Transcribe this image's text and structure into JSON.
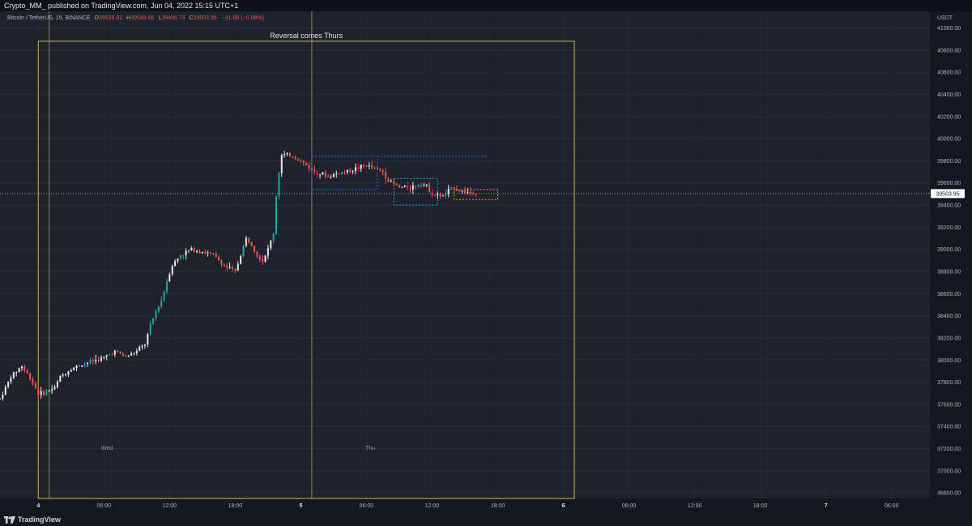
{
  "header": {
    "published": "Crypto_MM_ published on TradingView.com, Jun 04, 2022 15:15 UTC+1"
  },
  "legend": {
    "symbol": "Bitcoin / TetherUS, 15, BINANCE",
    "o_label": "O",
    "o_value": "39535.02",
    "h_label": "H",
    "h_value": "39545.66",
    "l_label": "L",
    "l_value": "39486.73",
    "c_label": "C",
    "c_value": "39503.95",
    "change": "−31.06 (−0.08%)"
  },
  "price_axis": {
    "currency": "USDT",
    "last_price": "39503.95",
    "ticks": [
      "41000.00",
      "40800.00",
      "40600.00",
      "40400.00",
      "40200.00",
      "40000.00",
      "39800.00",
      "39600.00",
      "39400.00",
      "39200.00",
      "39000.00",
      "38800.00",
      "38600.00",
      "38400.00",
      "38200.00",
      "38000.00",
      "37800.00",
      "37600.00",
      "37400.00",
      "37200.00",
      "37000.00",
      "36800.00"
    ]
  },
  "time_axis": {
    "ticks": [
      "4",
      "06:00",
      "12:00",
      "18:00",
      "5",
      "06:00",
      "12:00",
      "18:00",
      "6",
      "06:00",
      "12:00",
      "18:00",
      "7",
      "06:00"
    ],
    "bold": [
      "4",
      "5",
      "6",
      "7"
    ]
  },
  "annotations": {
    "box_title": "Reversal comes Thurs",
    "day_labels": [
      "Wed",
      "Thu"
    ]
  },
  "footer": {
    "brand": "TradingView"
  },
  "colors": {
    "up": "#26a69a",
    "down": "#ef5350",
    "body_white": "#e8e8e8",
    "pink": "#e91e63",
    "blue": "#2196f3",
    "annotation": "#c9b458",
    "box_blue": "#2962ff",
    "box_teal": "#00bcd4",
    "box_orange": "#ff9800"
  },
  "chart_data": {
    "type": "candlestick",
    "symbol": "BTCUSDT",
    "interval_minutes": 15,
    "ylim": [
      36750,
      41150
    ],
    "y_ticks": [
      41000,
      40800,
      40600,
      40400,
      40200,
      40000,
      39800,
      39600,
      39400,
      39200,
      39000,
      38800,
      38600,
      38400,
      38200,
      38000,
      37800,
      37600,
      37400,
      37200,
      37000,
      36800
    ],
    "last_close": 39503.95,
    "x_range_hours": [
      -3.5,
      81.5
    ],
    "x_time_ticks_hours_from_jun4_0000": [
      0,
      6,
      12,
      18,
      24,
      30,
      36,
      42,
      48,
      54,
      60,
      66,
      72,
      78
    ],
    "close_series_points": [
      [
        -3.5,
        37650
      ],
      [
        -2.5,
        37850
      ],
      [
        -1.5,
        37950
      ],
      [
        -0.5,
        37800
      ],
      [
        0,
        37700
      ],
      [
        0.5,
        37700
      ],
      [
        1.5,
        37750
      ],
      [
        2,
        37850
      ],
      [
        3,
        37920
      ],
      [
        4.5,
        37980
      ],
      [
        6,
        38020
      ],
      [
        7,
        38080
      ],
      [
        8,
        38030
      ],
      [
        9,
        38080
      ],
      [
        9.8,
        38150
      ],
      [
        10.2,
        38300
      ],
      [
        10.8,
        38450
      ],
      [
        11.3,
        38550
      ],
      [
        11.7,
        38700
      ],
      [
        12.2,
        38850
      ],
      [
        13,
        38950
      ],
      [
        14,
        39000
      ],
      [
        15,
        38980
      ],
      [
        16,
        38950
      ],
      [
        16.5,
        38900
      ],
      [
        17,
        38850
      ],
      [
        18,
        38800
      ],
      [
        18.5,
        38950
      ],
      [
        19,
        39100
      ],
      [
        19.5,
        39050
      ],
      [
        20,
        38950
      ],
      [
        20.5,
        38900
      ],
      [
        21,
        39000
      ],
      [
        21.5,
        39150
      ],
      [
        21.8,
        39550
      ],
      [
        22.2,
        39850
      ],
      [
        23,
        39850
      ],
      [
        24,
        39800
      ],
      [
        25,
        39720
      ],
      [
        26,
        39680
      ],
      [
        26.5,
        39650
      ],
      [
        27,
        39680
      ],
      [
        28,
        39700
      ],
      [
        29,
        39730
      ],
      [
        30,
        39760
      ],
      [
        31,
        39720
      ],
      [
        31.5,
        39700
      ],
      [
        32,
        39620
      ],
      [
        33,
        39560
      ],
      [
        34,
        39560
      ],
      [
        35,
        39600
      ],
      [
        35.5,
        39570
      ],
      [
        36,
        39500
      ],
      [
        37,
        39480
      ],
      [
        37.5,
        39530
      ],
      [
        38,
        39560
      ],
      [
        38.5,
        39530
      ],
      [
        39,
        39520
      ],
      [
        39.5,
        39510
      ],
      [
        40,
        39504
      ]
    ],
    "annotations": [
      {
        "type": "vertical_line",
        "x_hours": 1.0
      },
      {
        "type": "vertical_line",
        "x_hours": 25.0
      },
      {
        "type": "rectangle",
        "label": "Reversal comes Thurs",
        "x_hours": [
          0,
          49
        ],
        "y": [
          36750,
          40880
        ]
      },
      {
        "type": "rectangle",
        "style": "dotted-blue",
        "x_hours": [
          25,
          31
        ],
        "y": [
          39540,
          39840
        ]
      },
      {
        "type": "rectangle",
        "style": "dotted-teal",
        "x_hours": [
          32.5,
          36.5
        ],
        "y": [
          39400,
          39640
        ]
      },
      {
        "type": "rectangle",
        "style": "dotted-orange",
        "x_hours": [
          38,
          42
        ],
        "y": [
          39450,
          39540
        ]
      },
      {
        "type": "horizontal_segment",
        "style": "dotted-blue",
        "x_hours": [
          31,
          41
        ],
        "y": 39840
      },
      {
        "type": "horizontal_line",
        "style": "dotted",
        "y": 39503.95
      }
    ]
  }
}
